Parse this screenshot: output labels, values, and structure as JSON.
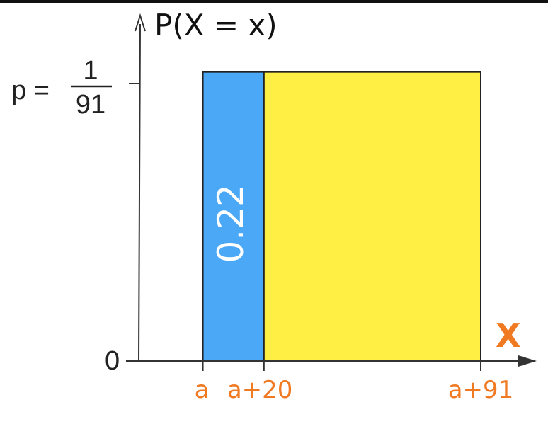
{
  "chart_data": {
    "type": "area",
    "title": "",
    "ylabel": "P(X = x)",
    "xlabel": "X",
    "x_ticks": [
      "a",
      "a+20",
      "a+91"
    ],
    "x_tick_values": [
      0,
      20,
      91
    ],
    "xlim": [
      -21,
      107
    ],
    "y_ticks": [
      {
        "value": 0,
        "label": "0"
      },
      {
        "value": 1,
        "label_prefix": "p =",
        "numerator": "1",
        "denominator": "91"
      }
    ],
    "ylim": [
      0,
      1.2
    ],
    "density": 1,
    "regions": [
      {
        "from": 0,
        "to": 20,
        "color": "#4aa8f6",
        "label": "0.22"
      },
      {
        "from": 20,
        "to": 91,
        "color": "#ffee44",
        "label": ""
      }
    ],
    "accent_color": "#f07a22",
    "grid": false
  }
}
